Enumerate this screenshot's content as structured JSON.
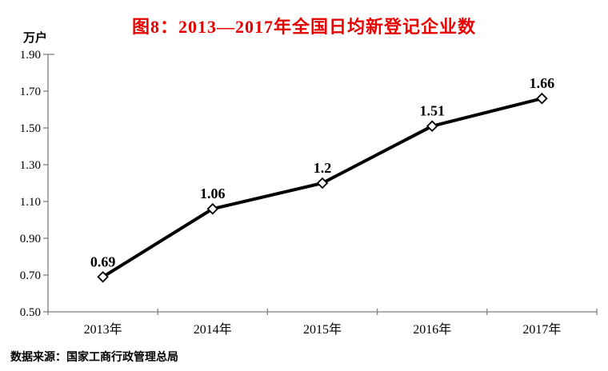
{
  "title": "图8：2013—2017年全国日均新登记企业数",
  "y_axis_unit": "万户",
  "source_note": "数据来源：国家工商行政管理总局",
  "colors": {
    "title": "#e60000",
    "axis": "#808080",
    "line": "#000000",
    "text": "#000000",
    "marker_fill": "#ffffff"
  },
  "chart_data": {
    "type": "line",
    "title": "图8：2013—2017年全国日均新登记企业数",
    "categories": [
      "2013年",
      "2014年",
      "2015年",
      "2016年",
      "2017年"
    ],
    "values": [
      0.69,
      1.06,
      1.2,
      1.51,
      1.66
    ],
    "data_labels": [
      "0.69",
      "1.06",
      "1.2",
      "1.51",
      "1.66"
    ],
    "xlabel": "",
    "ylabel": "万户",
    "ylim": [
      0.5,
      1.9
    ],
    "yticks": [
      "1.90",
      "1.70",
      "1.50",
      "1.30",
      "1.10",
      "0.90",
      "0.70",
      "0.50"
    ],
    "grid": false,
    "legend": "none",
    "marker": "open-diamond"
  }
}
